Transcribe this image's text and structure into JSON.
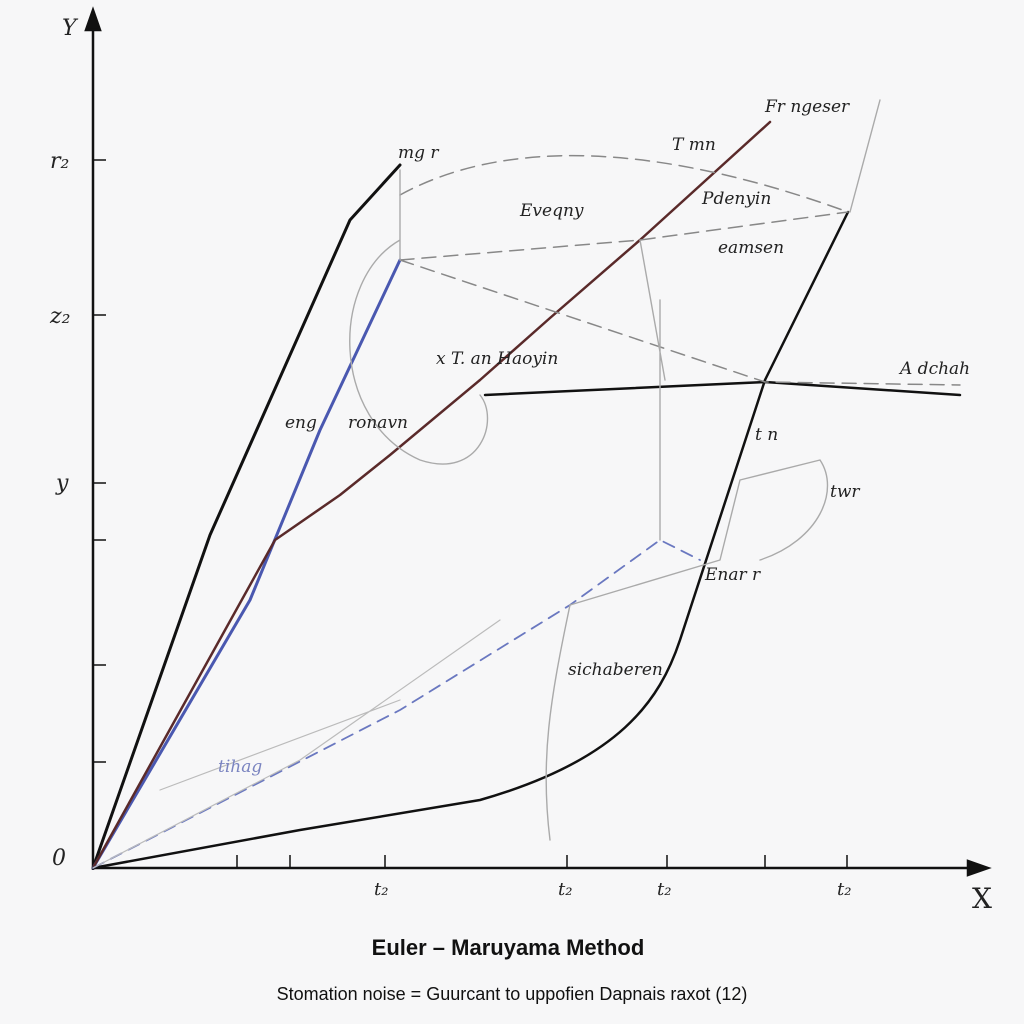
{
  "axes": {
    "y_label": "Y",
    "x_label": "X",
    "y_ticks": [
      "r₂",
      "z₂",
      "y",
      "0"
    ],
    "x_ticks": [
      "t₂",
      "t₂",
      "t₂",
      "t₂"
    ]
  },
  "annotations": [
    "Fr ngeser",
    "T mn",
    "mg r",
    "Eveqny",
    "Pdenyin",
    "eamsen",
    "x T. an Haoyin",
    "A dchah",
    "eng",
    "ronavn",
    "t n",
    "twr",
    "Enar r",
    "sichaberen",
    "tihag"
  ],
  "footer": {
    "title": "Euler – Maruyama Method",
    "caption": "Stomation noise = Guurcant to uppofien Dapnais raxot (12)"
  }
}
